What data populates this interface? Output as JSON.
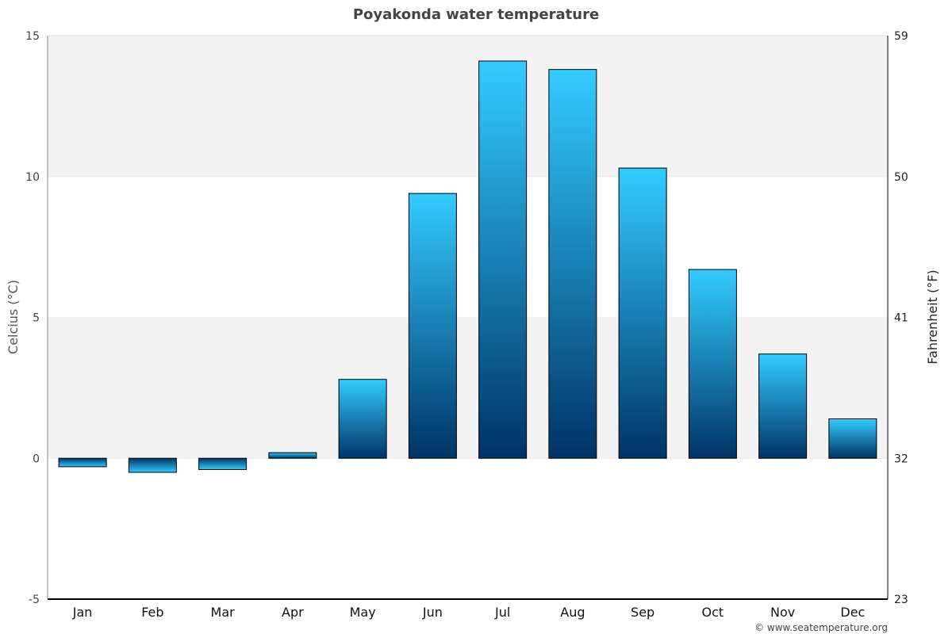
{
  "chart_data": {
    "type": "bar",
    "title": "Poyakonda water temperature",
    "ylabel": "Celcius (°C)",
    "y2label": "Fahrenheit (°F)",
    "categories": [
      "Jan",
      "Feb",
      "Mar",
      "Apr",
      "May",
      "Jun",
      "Jul",
      "Aug",
      "Sep",
      "Oct",
      "Nov",
      "Dec"
    ],
    "values": [
      -0.3,
      -0.5,
      -0.4,
      0.2,
      2.8,
      9.4,
      14.1,
      13.8,
      10.3,
      6.7,
      3.7,
      1.4
    ],
    "ylim": [
      -5,
      15
    ],
    "yticks": [
      -5,
      0,
      5,
      10,
      15
    ],
    "y2ticks": [
      {
        "c": -5,
        "label": "23"
      },
      {
        "c": 0,
        "label": "32"
      },
      {
        "c": 5,
        "label": "41"
      },
      {
        "c": 10,
        "label": "50"
      },
      {
        "c": 15,
        "label": "59"
      }
    ],
    "grid": "alternating horizontal bands",
    "colors": {
      "bar_light": "#33ccff",
      "bar_dark": "#003366",
      "band": "#f3f3f3"
    }
  },
  "credit": "© www.seatemperature.org"
}
